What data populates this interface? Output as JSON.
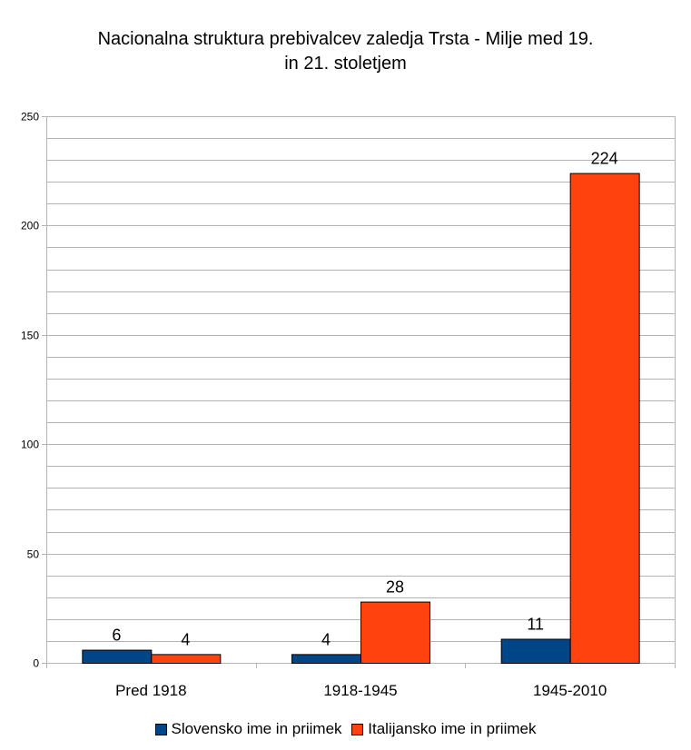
{
  "chart_data": {
    "type": "bar",
    "title_line1": "Nacionalna struktura prebivalcev zaledja Trsta - Milje med 19.",
    "title_line2": "in 21. stoletjem",
    "categories": [
      "Pred 1918",
      "1918-1945",
      "1945-2010"
    ],
    "series": [
      {
        "name": "Slovensko ime in priimek",
        "values": [
          6,
          4,
          11
        ],
        "color": "#004586"
      },
      {
        "name": "Italijansko ime in  priimek",
        "values": [
          4,
          28,
          224
        ],
        "color": "#ff420e"
      }
    ],
    "ylim": [
      0,
      250
    ],
    "y_ticks": [
      "0",
      "50",
      "100",
      "150",
      "200",
      "250"
    ],
    "y_tick_values": [
      0,
      50,
      100,
      150,
      200,
      250
    ],
    "minor_step": 10,
    "grid": true,
    "legend_position": "bottom",
    "data_labels": true
  }
}
